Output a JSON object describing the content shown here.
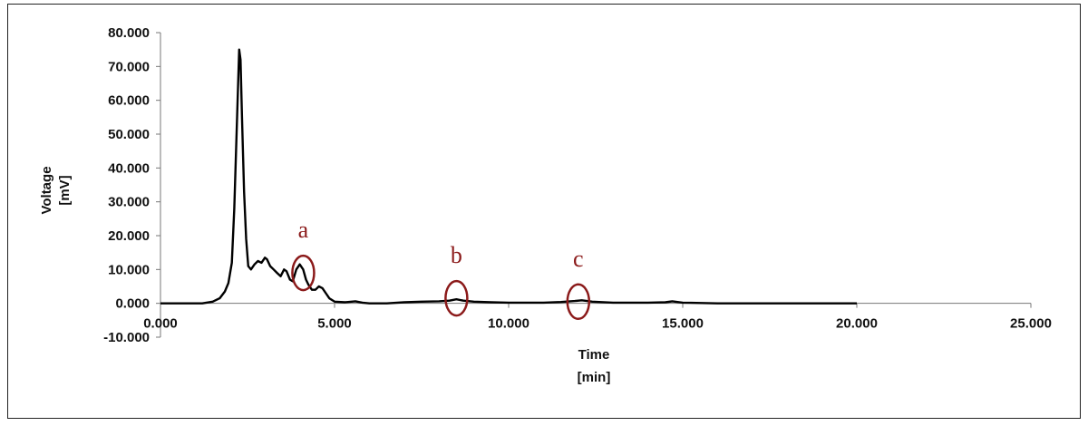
{
  "chart_data": {
    "type": "line",
    "xlabel_line1": "Time",
    "xlabel_line2": "[min]",
    "ylabel_line1": "Voltage",
    "ylabel_line2": "[mV]",
    "xlim": [
      0,
      25
    ],
    "ylim": [
      -10,
      80
    ],
    "x_ticks": [
      {
        "value": 0,
        "label": "0.000"
      },
      {
        "value": 5,
        "label": "5.000"
      },
      {
        "value": 10,
        "label": "10.000"
      },
      {
        "value": 15,
        "label": "15.000"
      },
      {
        "value": 20,
        "label": "20.000"
      },
      {
        "value": 25,
        "label": "25.000"
      }
    ],
    "y_ticks": [
      {
        "value": -10,
        "label": "-10.000"
      },
      {
        "value": 0,
        "label": "0.000"
      },
      {
        "value": 10,
        "label": "10.000"
      },
      {
        "value": 20,
        "label": "20.000"
      },
      {
        "value": 30,
        "label": "30.000"
      },
      {
        "value": 40,
        "label": "40.000"
      },
      {
        "value": 50,
        "label": "50.000"
      },
      {
        "value": 60,
        "label": "60.000"
      },
      {
        "value": 70,
        "label": "70.000"
      },
      {
        "value": 80,
        "label": "80.000"
      }
    ],
    "grid": false,
    "legend": "none",
    "line_color": "#000000",
    "annotation_color": "#8b1a1a",
    "series": [
      {
        "x": [
          0,
          1.2,
          1.5,
          1.7,
          1.85,
          1.95,
          2.05,
          2.12,
          2.2,
          2.26,
          2.3,
          2.34,
          2.4,
          2.46,
          2.52,
          2.6,
          2.7,
          2.8,
          2.9,
          3.0,
          3.06,
          3.15,
          3.25,
          3.35,
          3.45,
          3.55,
          3.62,
          3.72,
          3.8,
          3.9,
          4.0,
          4.1,
          4.18,
          4.25,
          4.35,
          4.45,
          4.55,
          4.65,
          4.75,
          4.85,
          5.0,
          5.3,
          5.6,
          5.8,
          6.0,
          6.5,
          7.0,
          7.5,
          8.0,
          8.3,
          8.5,
          8.7,
          9.0,
          9.5,
          10.0,
          11.0,
          11.5,
          11.9,
          12.1,
          12.4,
          13.0,
          14.0,
          14.5,
          14.7,
          15.0,
          16.0,
          17.0,
          18.0,
          19.0,
          20.0
        ],
        "y": [
          0,
          0,
          0.5,
          1.5,
          3.5,
          6,
          12,
          28,
          55,
          75,
          72,
          55,
          33,
          19,
          11,
          10,
          11.5,
          12.5,
          12,
          13.5,
          13,
          11,
          10,
          9,
          8,
          10,
          9.5,
          7,
          6.5,
          10,
          11.5,
          10,
          7,
          5.5,
          4,
          4,
          5,
          4.5,
          3,
          1.5,
          0.5,
          0.3,
          0.6,
          0.2,
          0,
          0,
          0.3,
          0.5,
          0.6,
          0.8,
          1.2,
          0.8,
          0.5,
          0.3,
          0.2,
          0.2,
          0.4,
          0.7,
          0.9,
          0.5,
          0.2,
          0.2,
          0.3,
          0.6,
          0.2,
          0,
          0,
          0,
          0,
          0
        ]
      }
    ],
    "annotations": [
      {
        "label": "a",
        "x": 4.1,
        "y": 9
      },
      {
        "label": "b",
        "x": 8.5,
        "y": 1.5
      },
      {
        "label": "c",
        "x": 12.0,
        "y": 0.5
      }
    ]
  }
}
